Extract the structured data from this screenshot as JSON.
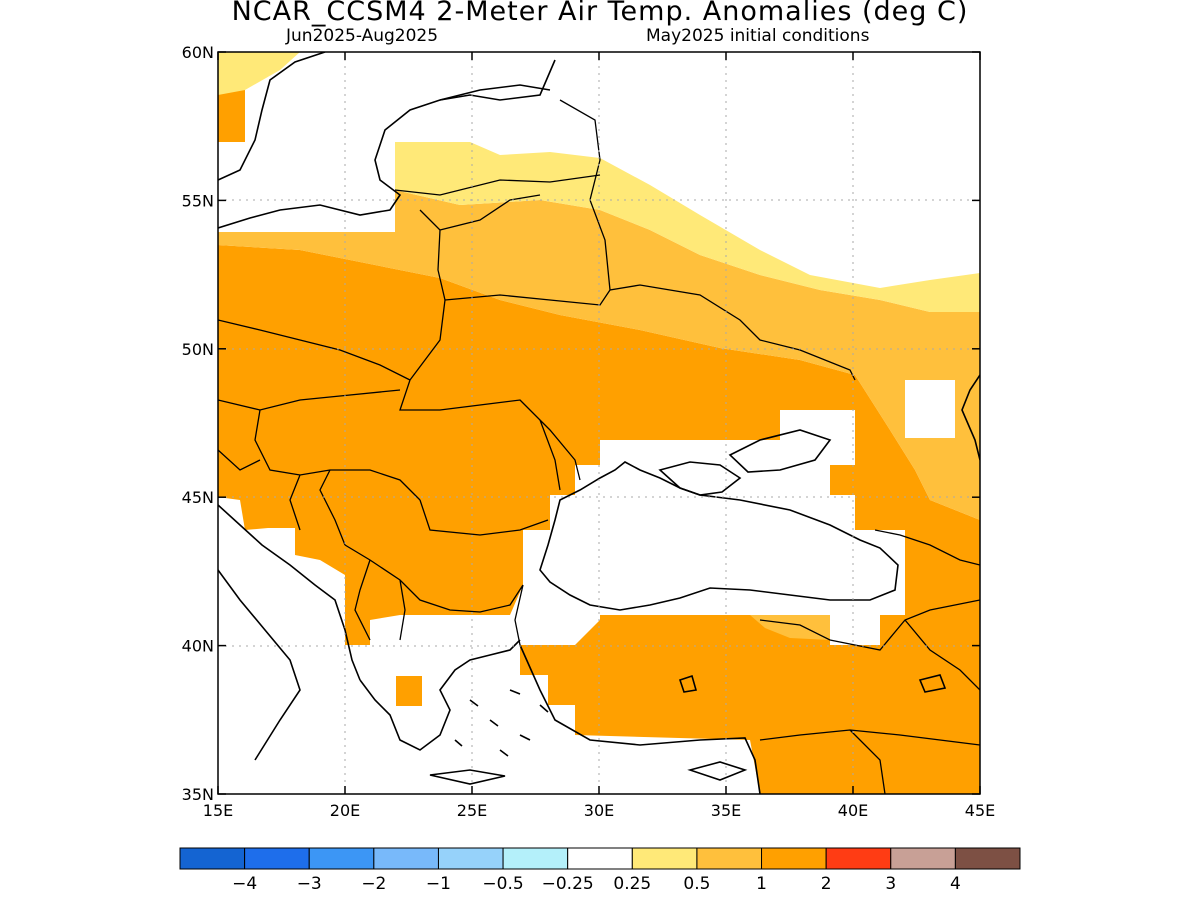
{
  "title": "NCAR_CCSM4 2-Meter Air Temp. Anomalies (deg C)",
  "subtitle_left": "Jun2025-Aug2025",
  "subtitle_right": "May2025 initial conditions",
  "map": {
    "lon_range": [
      15,
      45
    ],
    "lat_range": [
      35,
      60
    ],
    "lon_ticks": [
      15,
      20,
      25,
      30,
      35,
      40,
      45
    ],
    "lon_tick_labels": [
      "15E",
      "20E",
      "25E",
      "30E",
      "35E",
      "40E",
      "45E"
    ],
    "lat_ticks": [
      35,
      40,
      45,
      50,
      55,
      60
    ],
    "lat_tick_labels": [
      "35N",
      "40N",
      "45N",
      "50N",
      "55N",
      "60N"
    ],
    "grid": "dotted"
  },
  "colorbar": {
    "colors": [
      "#1464d2",
      "#1e6eeb",
      "#3c96f5",
      "#78b9fa",
      "#96d2fa",
      "#b4f0fa",
      "#ffffff",
      "#ffe978",
      "#ffc03c",
      "#ffa000",
      "#ff3c14",
      "#c8a096",
      "#7d5044"
    ],
    "labels": [
      "-4",
      "-3",
      "-2",
      "-1",
      "-0.5",
      "-0.25",
      "0.25",
      "0.5",
      "1",
      "2",
      "3",
      "4"
    ]
  },
  "colors": {
    "anomaly_0_25_to_0_5": "#ffe978",
    "anomaly_0_5_to_1": "#ffc03c",
    "anomaly_1_to_2": "#ffa000"
  }
}
